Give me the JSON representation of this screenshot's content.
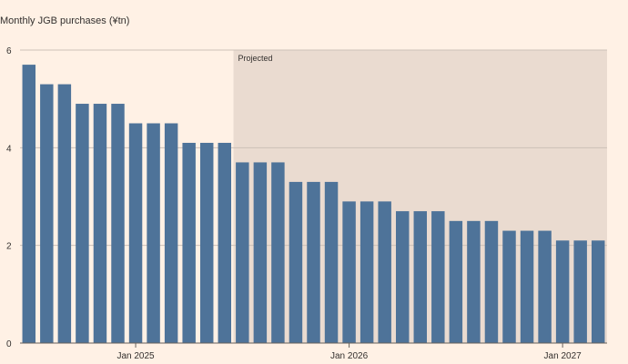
{
  "chart_data": {
    "type": "bar",
    "ylabel": "Monthly JGB purchases (¥tn)",
    "ylim": [
      0,
      6
    ],
    "yticks": [
      0,
      2,
      4,
      6
    ],
    "x": [
      "2024-07",
      "2024-08",
      "2024-09",
      "2024-10",
      "2024-11",
      "2024-12",
      "2025-01",
      "2025-02",
      "2025-03",
      "2025-04",
      "2025-05",
      "2025-06",
      "2025-07",
      "2025-08",
      "2025-09",
      "2025-10",
      "2025-11",
      "2025-12",
      "2026-01",
      "2026-02",
      "2026-03",
      "2026-04",
      "2026-05",
      "2026-06",
      "2026-07",
      "2026-08",
      "2026-09",
      "2026-10",
      "2026-11",
      "2026-12",
      "2027-01",
      "2027-02",
      "2027-03"
    ],
    "values": [
      5.7,
      5.3,
      5.3,
      4.9,
      4.9,
      4.9,
      4.5,
      4.5,
      4.5,
      4.1,
      4.1,
      4.1,
      3.7,
      3.7,
      3.7,
      3.3,
      3.3,
      3.3,
      2.9,
      2.9,
      2.9,
      2.7,
      2.7,
      2.7,
      2.5,
      2.5,
      2.5,
      2.3,
      2.3,
      2.3,
      2.1,
      2.1,
      2.1
    ],
    "xtick_labels": [
      {
        "label": "Jan 2025",
        "at": "2025-01"
      },
      {
        "label": "Jan 2026",
        "at": "2026-01"
      },
      {
        "label": "Jan 2027",
        "at": "2027-01"
      }
    ],
    "projected": {
      "label": "Projected",
      "from": "2025-07"
    },
    "bar_color": "#4e7399",
    "shade_color": "#eadbd0",
    "grid": true
  }
}
